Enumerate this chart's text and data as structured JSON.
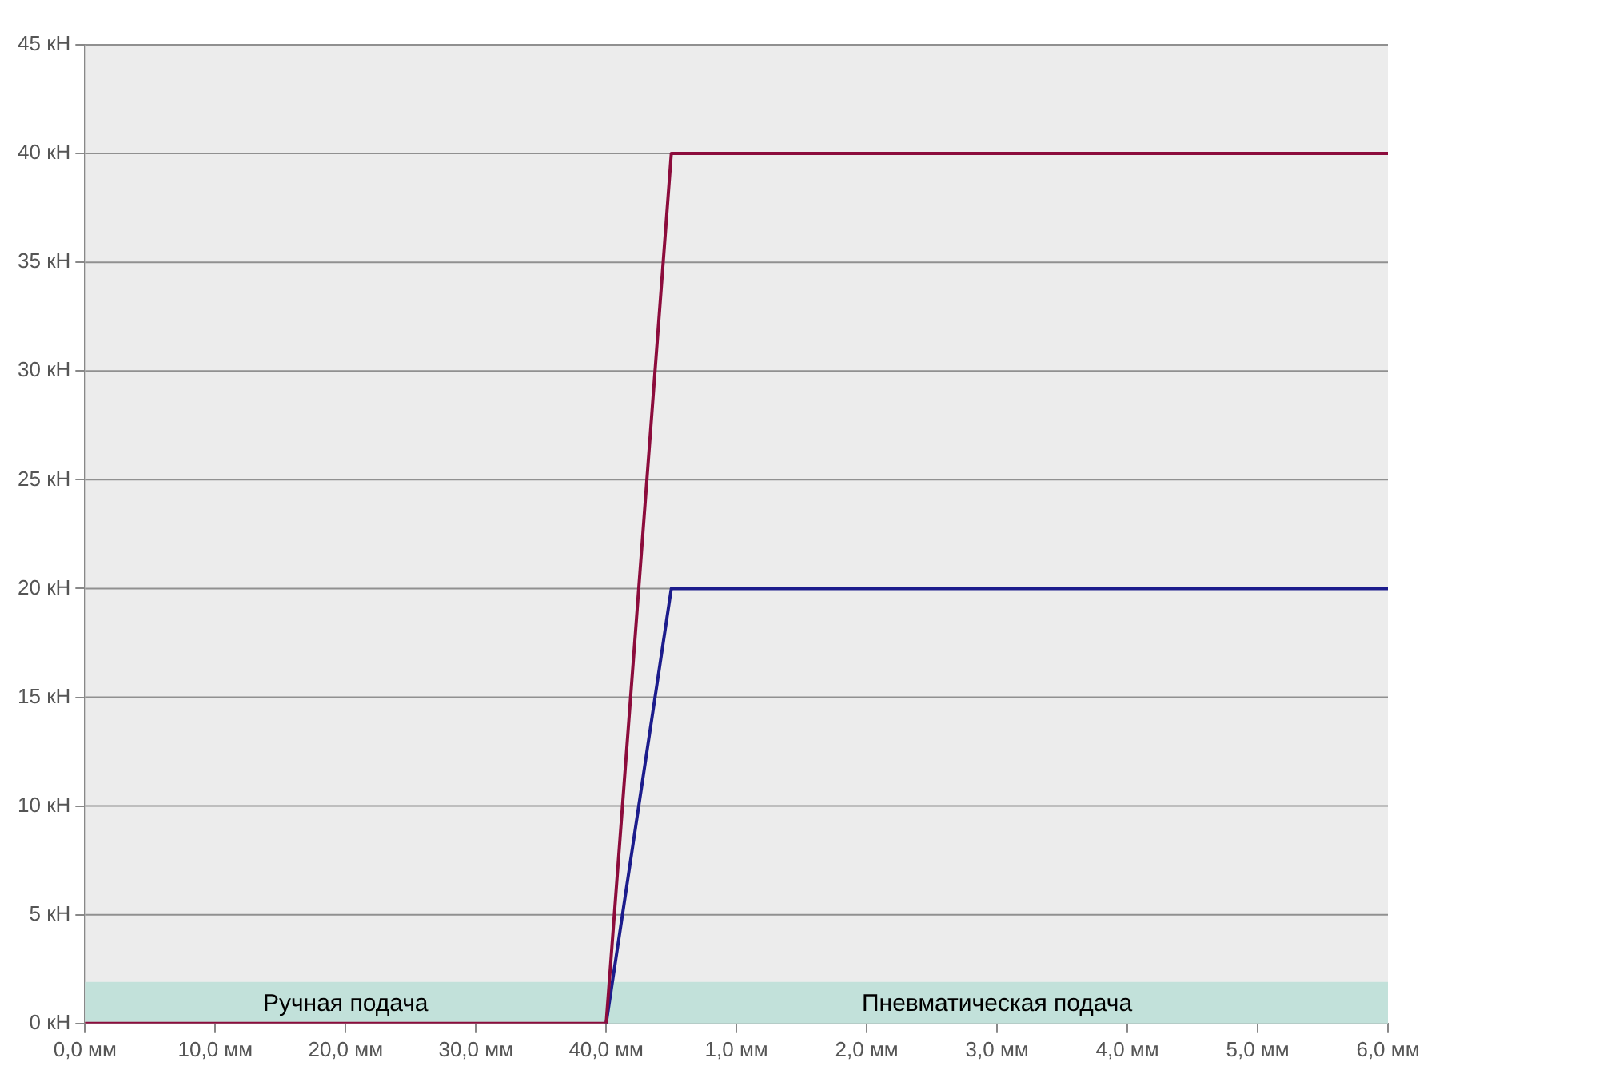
{
  "chart_data": {
    "type": "line",
    "categories": [
      "0,0 мм",
      null,
      "10,0 мм",
      null,
      "20,0 мм",
      null,
      "30,0 мм",
      null,
      "40,0 мм",
      null,
      "1,0 мм",
      null,
      "2,0 мм",
      null,
      "3,0 мм",
      null,
      "4,0 мм",
      null,
      "5,0 мм",
      null,
      "6,0 мм"
    ],
    "ylim": [
      0,
      45
    ],
    "yticks": [
      {
        "value": 0,
        "label": "0 кН"
      },
      {
        "value": 5,
        "label": "5 кН"
      },
      {
        "value": 10,
        "label": "10 кН"
      },
      {
        "value": 15,
        "label": "15 кН"
      },
      {
        "value": 20,
        "label": "20 кН"
      },
      {
        "value": 25,
        "label": "25 кН"
      },
      {
        "value": 30,
        "label": "30 кН"
      },
      {
        "value": 35,
        "label": "35 кН"
      },
      {
        "value": 40,
        "label": "40 кН"
      },
      {
        "value": 45,
        "label": "45 кН"
      }
    ],
    "series": [
      {
        "color": "#1c1c8c",
        "values": [
          null,
          null,
          null,
          null,
          null,
          null,
          null,
          null,
          0,
          20,
          20,
          20,
          20,
          20,
          20,
          20,
          20,
          20,
          20,
          20,
          20
        ]
      },
      {
        "color": "#8c0c3c",
        "values": [
          0,
          0,
          0,
          0,
          0,
          0,
          0,
          0,
          0,
          40,
          40,
          40,
          40,
          40,
          40,
          40,
          40,
          40,
          40,
          40,
          40
        ]
      }
    ],
    "bands": [
      {
        "axis": "x",
        "from": "0,0 мм",
        "to": "40,0 мм",
        "label": "Ручная подача",
        "color": "#c2e1da"
      },
      {
        "axis": "x",
        "from": "40,0 мм",
        "to": "6,0 мм",
        "label": "Пневматическая подача",
        "color": "#c2e1da"
      }
    ],
    "grid": "y",
    "marker": "none",
    "line_style": "solid",
    "legend": false
  }
}
